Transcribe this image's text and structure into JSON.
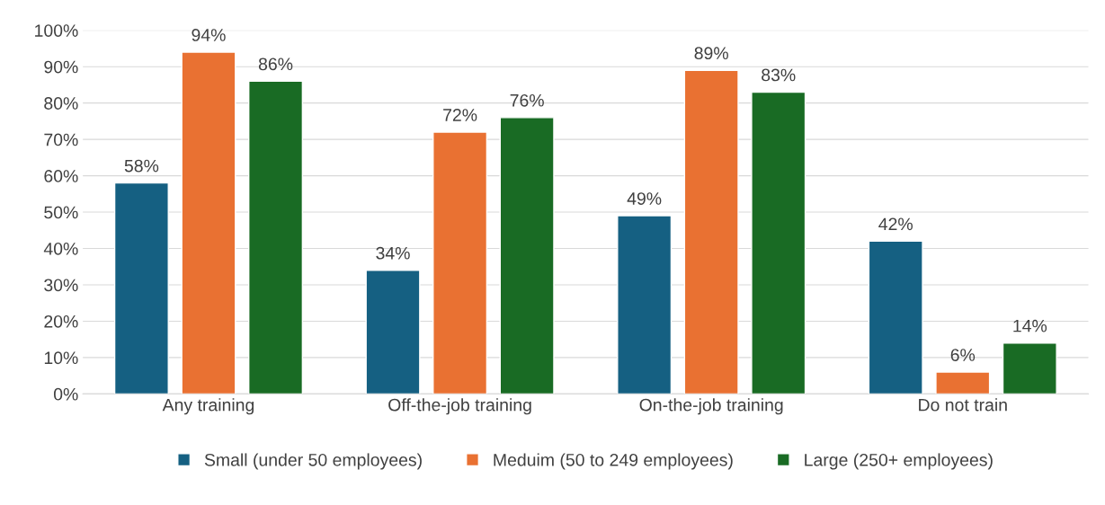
{
  "chart_data": {
    "type": "bar",
    "categories": [
      "Any training",
      "Off-the-job training",
      "On-the-job training",
      "Do not train"
    ],
    "series": [
      {
        "name": "Small (under 50 employees)",
        "color": "#156082",
        "values": [
          58,
          34,
          49,
          42
        ],
        "value_labels": [
          "58%",
          "34%",
          "49%",
          "42%"
        ]
      },
      {
        "name": "Meduim (50 to 249 employees)",
        "color": "#e97132",
        "values": [
          94,
          72,
          89,
          6
        ],
        "value_labels": [
          "94%",
          "72%",
          "89%",
          "6%"
        ]
      },
      {
        "name": "Large (250+ employees)",
        "color": "#196b24",
        "values": [
          86,
          76,
          83,
          14
        ],
        "value_labels": [
          "86%",
          "76%",
          "83%",
          "14%"
        ]
      }
    ],
    "ylim": [
      0,
      100
    ],
    "yticks": [
      {
        "value": 0,
        "label": "0%"
      },
      {
        "value": 10,
        "label": "10%"
      },
      {
        "value": 20,
        "label": "20%"
      },
      {
        "value": 30,
        "label": "30%"
      },
      {
        "value": 40,
        "label": "40%"
      },
      {
        "value": 50,
        "label": "50%"
      },
      {
        "value": 60,
        "label": "60%"
      },
      {
        "value": 70,
        "label": "70%"
      },
      {
        "value": 80,
        "label": "80%"
      },
      {
        "value": 90,
        "label": "90%"
      },
      {
        "value": 100,
        "label": "100%"
      }
    ],
    "grid": "y",
    "legend": "bottom"
  }
}
